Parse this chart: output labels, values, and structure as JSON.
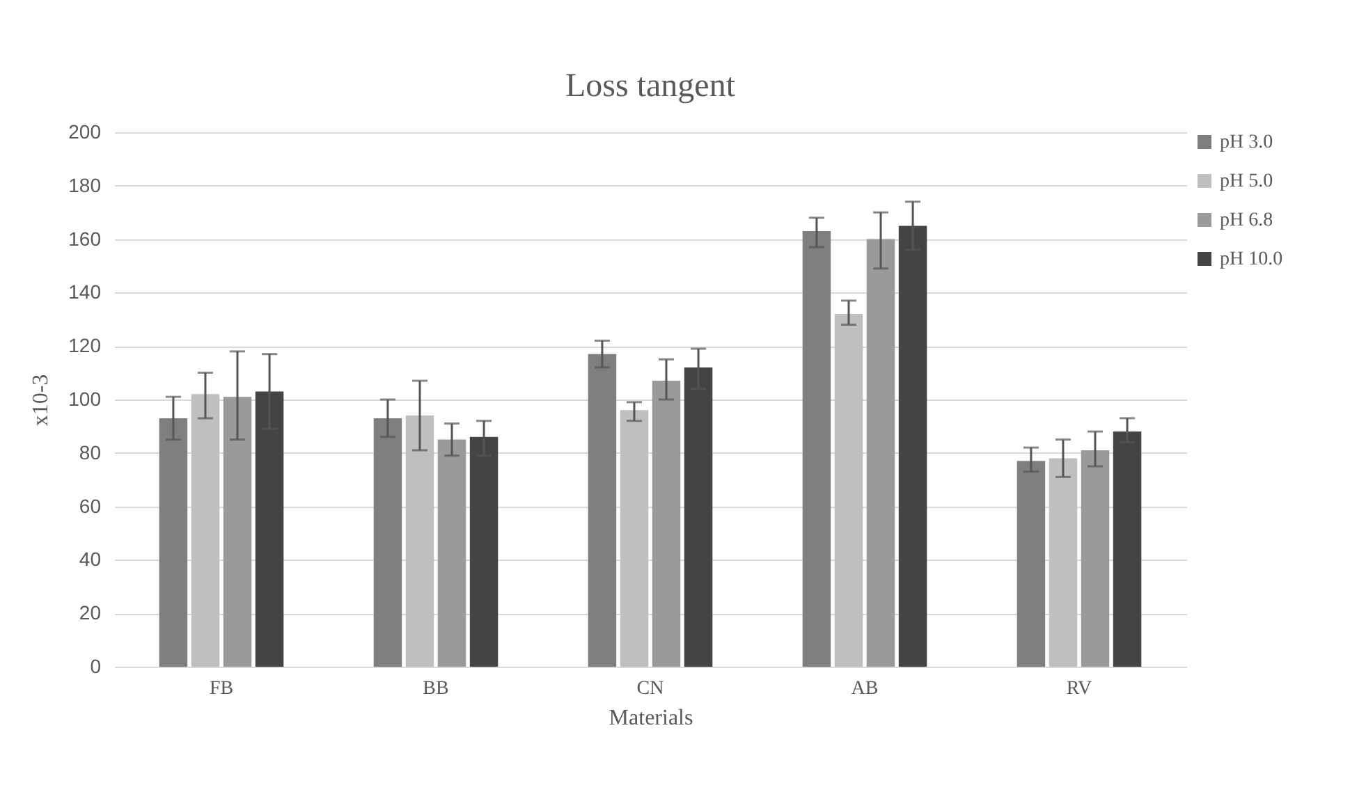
{
  "chart_data": {
    "type": "bar",
    "title": "Loss tangent",
    "xlabel": "Materials",
    "ylabel": "x10-3",
    "categories": [
      "FB",
      "BB",
      "CN",
      "AB",
      "RV"
    ],
    "series": [
      {
        "name": "pH 3.0",
        "color": "#7f7f81",
        "values": [
          93,
          93,
          117,
          163,
          77
        ],
        "errors": [
          [
            85,
            101
          ],
          [
            86,
            100
          ],
          [
            112,
            122
          ],
          [
            157,
            168
          ],
          [
            73,
            82
          ]
        ]
      },
      {
        "name": "pH 5.0",
        "color": "#bfbfc1",
        "values": [
          102,
          94,
          96,
          132,
          78
        ],
        "errors": [
          [
            93,
            110
          ],
          [
            81,
            107
          ],
          [
            92,
            99
          ],
          [
            128,
            137
          ],
          [
            71,
            85
          ]
        ]
      },
      {
        "name": "pH 6.8",
        "color": "#9a9a9c",
        "values": [
          101,
          85,
          107,
          160,
          81
        ],
        "errors": [
          [
            85,
            118
          ],
          [
            79,
            91
          ],
          [
            100,
            115
          ],
          [
            149,
            170
          ],
          [
            75,
            88
          ]
        ]
      },
      {
        "name": "pH 10.0",
        "color": "#444446",
        "values": [
          103,
          86,
          112,
          165,
          88
        ],
        "errors": [
          [
            89,
            117
          ],
          [
            79,
            92
          ],
          [
            104,
            119
          ],
          [
            156,
            174
          ],
          [
            84,
            93
          ]
        ]
      }
    ],
    "ylim": [
      0,
      200
    ],
    "yticks": [
      0,
      20,
      40,
      60,
      80,
      100,
      120,
      140,
      160,
      180,
      200
    ],
    "grid": "y",
    "legend": "right"
  }
}
